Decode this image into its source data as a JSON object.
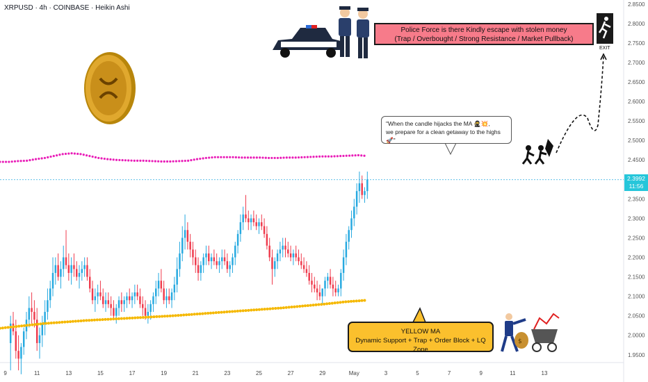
{
  "header": {
    "title": "XRPUSD · 4h · COINBASE · Heikin Ashi"
  },
  "annotations": {
    "police_line1": "Police Force is there Kindly escape with stolen money",
    "police_line2": "(Trap / Overbought / Strong Resistance / Market Pullback)",
    "quote_line1": "\"When the candle hijacks the MA 🥷💥,",
    "quote_line2": "we prepare for a clean getaway to the highs 🚀\"",
    "yellow_line1": "YELLOW MA",
    "yellow_line2": "Dynamic Support + Trap + Order Block + LQ Zone",
    "exit_label": "EXIT"
  },
  "price_tag": {
    "price": "2.3992",
    "timer": "11:56",
    "color": "#26c6da"
  },
  "icons": [
    "xrp-coin-icon",
    "police-car-icon",
    "police-officer-icon",
    "exit-runner-icon",
    "robber-icon",
    "businessman-icon",
    "money-cart-icon"
  ],
  "colors": {
    "up": "#26a9e0",
    "down": "#ef3b4d",
    "magenta_ma": "#e91eb8",
    "yellow_ma": "#f5b800",
    "red_box": "#f77b8a",
    "yellow_box": "#fbc02d"
  },
  "chart_data": {
    "type": "candlestick",
    "y_ticks": [
      "2.8500",
      "2.8000",
      "2.7500",
      "2.7000",
      "2.6500",
      "2.6000",
      "2.5500",
      "2.5000",
      "2.4500",
      "2.4000",
      "2.3500",
      "2.3000",
      "2.2500",
      "2.2000",
      "2.1500",
      "2.1000",
      "2.0500",
      "2.0000",
      "1.9500"
    ],
    "x_ticks": [
      "9",
      "11",
      "13",
      "15",
      "17",
      "19",
      "21",
      "23",
      "25",
      "27",
      "29",
      "May",
      "3",
      "5",
      "7",
      "9",
      "11",
      "13"
    ],
    "ylim": [
      1.93,
      2.855
    ],
    "xlim": [
      -4,
      232
    ],
    "current_price": 2.3992,
    "candles": [
      [
        1.98,
        2.05,
        1.91,
        2.03
      ],
      [
        2.03,
        2.06,
        2.0,
        2.01
      ],
      [
        2.01,
        2.04,
        1.94,
        1.96
      ],
      [
        1.96,
        2.0,
        1.91,
        1.94
      ],
      [
        1.94,
        1.98,
        1.9,
        1.97
      ],
      [
        1.97,
        2.02,
        1.95,
        2.01
      ],
      [
        2.01,
        2.06,
        1.99,
        2.04
      ],
      [
        2.04,
        2.1,
        2.02,
        2.07
      ],
      [
        2.07,
        2.11,
        2.03,
        2.06
      ],
      [
        2.06,
        2.09,
        2.02,
        2.04
      ],
      [
        2.04,
        2.07,
        1.96,
        1.98
      ],
      [
        1.98,
        2.02,
        1.94,
        2.0
      ],
      [
        2.0,
        2.05,
        1.97,
        2.03
      ],
      [
        2.03,
        2.09,
        2.0,
        2.06
      ],
      [
        2.06,
        2.12,
        2.04,
        2.09
      ],
      [
        2.09,
        2.14,
        2.07,
        2.12
      ],
      [
        2.12,
        2.2,
        2.1,
        2.16
      ],
      [
        2.16,
        2.2,
        2.13,
        2.18
      ],
      [
        2.18,
        2.21,
        2.14,
        2.15
      ],
      [
        2.15,
        2.19,
        2.12,
        2.17
      ],
      [
        2.17,
        2.23,
        2.15,
        2.2
      ],
      [
        2.2,
        2.27,
        2.17,
        2.18
      ],
      [
        2.18,
        2.21,
        2.14,
        2.16
      ],
      [
        2.16,
        2.2,
        2.13,
        2.18
      ],
      [
        2.18,
        2.21,
        2.15,
        2.17
      ],
      [
        2.17,
        2.19,
        2.14,
        2.15
      ],
      [
        2.15,
        2.18,
        2.12,
        2.16
      ],
      [
        2.16,
        2.19,
        2.14,
        2.17
      ],
      [
        2.17,
        2.2,
        2.15,
        2.18
      ],
      [
        2.18,
        2.2,
        2.14,
        2.15
      ],
      [
        2.15,
        2.17,
        2.11,
        2.12
      ],
      [
        2.12,
        2.14,
        2.08,
        2.09
      ],
      [
        2.09,
        2.12,
        2.06,
        2.1
      ],
      [
        2.1,
        2.13,
        2.08,
        2.11
      ],
      [
        2.11,
        2.14,
        2.09,
        2.1
      ],
      [
        2.1,
        2.12,
        2.07,
        2.08
      ],
      [
        2.08,
        2.11,
        2.06,
        2.09
      ],
      [
        2.09,
        2.11,
        2.07,
        2.08
      ],
      [
        2.08,
        2.1,
        2.05,
        2.07
      ],
      [
        2.07,
        2.09,
        2.04,
        2.05
      ],
      [
        2.05,
        2.08,
        2.03,
        2.07
      ],
      [
        2.07,
        2.1,
        2.05,
        2.09
      ],
      [
        2.09,
        2.11,
        2.06,
        2.08
      ],
      [
        2.08,
        2.1,
        2.06,
        2.09
      ],
      [
        2.09,
        2.11,
        2.07,
        2.1
      ],
      [
        2.1,
        2.12,
        2.08,
        2.09
      ],
      [
        2.09,
        2.11,
        2.07,
        2.1
      ],
      [
        2.1,
        2.13,
        2.08,
        2.11
      ],
      [
        2.11,
        2.13,
        2.09,
        2.1
      ],
      [
        2.1,
        2.12,
        2.07,
        2.08
      ],
      [
        2.08,
        2.1,
        2.05,
        2.07
      ],
      [
        2.07,
        2.09,
        2.04,
        2.05
      ],
      [
        2.05,
        2.08,
        2.03,
        2.06
      ],
      [
        2.06,
        2.09,
        2.04,
        2.08
      ],
      [
        2.08,
        2.11,
        2.06,
        2.1
      ],
      [
        2.1,
        2.14,
        2.08,
        2.12
      ],
      [
        2.12,
        2.16,
        2.1,
        2.14
      ],
      [
        2.14,
        2.17,
        2.11,
        2.12
      ],
      [
        2.12,
        2.14,
        2.08,
        2.09
      ],
      [
        2.09,
        2.12,
        2.07,
        2.1
      ],
      [
        2.1,
        2.12,
        2.08,
        2.09
      ],
      [
        2.09,
        2.12,
        2.07,
        2.11
      ],
      [
        2.11,
        2.15,
        2.09,
        2.13
      ],
      [
        2.13,
        2.2,
        2.11,
        2.17
      ],
      [
        2.17,
        2.24,
        2.15,
        2.21
      ],
      [
        2.21,
        2.28,
        2.19,
        2.25
      ],
      [
        2.25,
        2.31,
        2.22,
        2.27
      ],
      [
        2.27,
        2.29,
        2.22,
        2.24
      ],
      [
        2.24,
        2.26,
        2.2,
        2.22
      ],
      [
        2.22,
        2.24,
        2.18,
        2.2
      ],
      [
        2.2,
        2.22,
        2.16,
        2.18
      ],
      [
        2.18,
        2.2,
        2.14,
        2.16
      ],
      [
        2.16,
        2.19,
        2.14,
        2.18
      ],
      [
        2.18,
        2.21,
        2.16,
        2.2
      ],
      [
        2.2,
        2.23,
        2.18,
        2.21
      ],
      [
        2.21,
        2.23,
        2.18,
        2.19
      ],
      [
        2.19,
        2.21,
        2.17,
        2.2
      ],
      [
        2.2,
        2.22,
        2.18,
        2.19
      ],
      [
        2.19,
        2.21,
        2.17,
        2.18
      ],
      [
        2.18,
        2.2,
        2.16,
        2.19
      ],
      [
        2.19,
        2.22,
        2.17,
        2.2
      ],
      [
        2.2,
        2.22,
        2.18,
        2.19
      ],
      [
        2.19,
        2.21,
        2.16,
        2.17
      ],
      [
        2.17,
        2.19,
        2.15,
        2.18
      ],
      [
        2.18,
        2.21,
        2.16,
        2.2
      ],
      [
        2.2,
        2.24,
        2.18,
        2.23
      ],
      [
        2.23,
        2.27,
        2.21,
        2.26
      ],
      [
        2.26,
        2.31,
        2.24,
        2.29
      ],
      [
        2.29,
        2.33,
        2.27,
        2.31
      ],
      [
        2.31,
        2.36,
        2.29,
        2.3
      ],
      [
        2.3,
        2.32,
        2.27,
        2.29
      ],
      [
        2.29,
        2.31,
        2.27,
        2.3
      ],
      [
        2.3,
        2.32,
        2.28,
        2.29
      ],
      [
        2.29,
        2.31,
        2.27,
        2.28
      ],
      [
        2.28,
        2.3,
        2.26,
        2.29
      ],
      [
        2.29,
        2.31,
        2.27,
        2.28
      ],
      [
        2.28,
        2.3,
        2.25,
        2.26
      ],
      [
        2.26,
        2.28,
        2.22,
        2.23
      ],
      [
        2.23,
        2.25,
        2.19,
        2.2
      ],
      [
        2.2,
        2.22,
        2.13,
        2.17
      ],
      [
        2.17,
        2.2,
        2.15,
        2.19
      ],
      [
        2.19,
        2.22,
        2.17,
        2.21
      ],
      [
        2.21,
        2.24,
        2.19,
        2.22
      ],
      [
        2.22,
        2.25,
        2.2,
        2.23
      ],
      [
        2.23,
        2.25,
        2.2,
        2.22
      ],
      [
        2.22,
        2.24,
        2.2,
        2.21
      ],
      [
        2.21,
        2.23,
        2.19,
        2.2
      ],
      [
        2.2,
        2.22,
        2.18,
        2.21
      ],
      [
        2.21,
        2.23,
        2.19,
        2.2
      ],
      [
        2.2,
        2.22,
        2.18,
        2.19
      ],
      [
        2.19,
        2.21,
        2.17,
        2.18
      ],
      [
        2.18,
        2.2,
        2.16,
        2.17
      ],
      [
        2.17,
        2.19,
        2.15,
        2.16
      ],
      [
        2.16,
        2.18,
        2.13,
        2.14
      ],
      [
        2.14,
        2.16,
        2.11,
        2.13
      ],
      [
        2.13,
        2.15,
        2.11,
        2.12
      ],
      [
        2.12,
        2.14,
        2.09,
        2.11
      ],
      [
        2.11,
        2.13,
        2.09,
        2.1
      ],
      [
        2.1,
        2.12,
        2.08,
        2.12
      ],
      [
        2.12,
        2.15,
        2.1,
        2.14
      ],
      [
        2.14,
        2.16,
        2.12,
        2.15
      ],
      [
        2.15,
        2.17,
        2.12,
        2.13
      ],
      [
        2.13,
        2.15,
        2.1,
        2.12
      ],
      [
        2.12,
        2.14,
        2.1,
        2.11
      ],
      [
        2.11,
        2.13,
        2.1,
        2.12
      ],
      [
        2.12,
        2.17,
        2.1,
        2.16
      ],
      [
        2.16,
        2.22,
        2.14,
        2.2
      ],
      [
        2.2,
        2.26,
        2.18,
        2.24
      ],
      [
        2.24,
        2.28,
        2.22,
        2.27
      ],
      [
        2.27,
        2.32,
        2.25,
        2.3
      ],
      [
        2.3,
        2.35,
        2.28,
        2.33
      ],
      [
        2.33,
        2.39,
        2.31,
        2.37
      ],
      [
        2.37,
        2.42,
        2.34,
        2.39
      ],
      [
        2.39,
        2.41,
        2.35,
        2.36
      ],
      [
        2.36,
        2.38,
        2.34,
        2.37
      ],
      [
        2.37,
        2.42,
        2.35,
        2.4
      ]
    ],
    "magenta_ma": [
      2.445,
      2.445,
      2.447,
      2.448,
      2.452,
      2.455,
      2.46,
      2.465,
      2.467,
      2.465,
      2.46,
      2.455,
      2.452,
      2.45,
      2.449,
      2.448,
      2.448,
      2.447,
      2.446,
      2.446,
      2.447,
      2.448,
      2.452,
      2.455,
      2.457,
      2.457,
      2.457,
      2.456,
      2.456,
      2.456,
      2.455,
      2.455,
      2.456,
      2.456,
      2.457,
      2.458,
      2.459,
      2.459,
      2.46,
      2.461,
      2.462,
      2.46
    ],
    "yellow_ma": [
      2.018,
      2.024,
      2.03,
      2.034,
      2.038,
      2.041,
      2.044,
      2.047,
      2.05,
      2.054,
      2.058,
      2.062,
      2.066,
      2.07,
      2.075,
      2.08,
      2.086,
      2.09
    ]
  }
}
